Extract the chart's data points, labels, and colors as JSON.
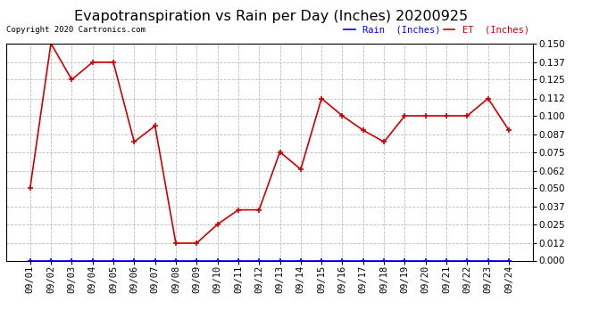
{
  "title": "Evapotranspiration vs Rain per Day (Inches) 20200925",
  "copyright_text": "Copyright 2020 Cartronics.com",
  "legend_rain": "Rain  (Inches)",
  "legend_et": "ET  (Inches)",
  "x_labels": [
    "09/01",
    "09/02",
    "09/03",
    "09/04",
    "09/05",
    "09/06",
    "09/07",
    "09/08",
    "09/09",
    "09/10",
    "09/11",
    "09/12",
    "09/13",
    "09/14",
    "09/15",
    "09/16",
    "09/17",
    "09/18",
    "09/19",
    "09/20",
    "09/21",
    "09/22",
    "09/23",
    "09/24"
  ],
  "rain_values": [
    0.0,
    0.0,
    0.0,
    0.0,
    0.0,
    0.0,
    0.0,
    0.0,
    0.0,
    0.0,
    0.0,
    0.0,
    0.0,
    0.0,
    0.0,
    0.0,
    0.0,
    0.0,
    0.0,
    0.0,
    0.0,
    0.0,
    0.0,
    0.0
  ],
  "et_values": [
    0.05,
    0.15,
    0.125,
    0.137,
    0.137,
    0.082,
    0.093,
    0.012,
    0.012,
    0.025,
    0.035,
    0.035,
    0.075,
    0.063,
    0.112,
    0.1,
    0.09,
    0.082,
    0.1,
    0.1,
    0.1,
    0.1,
    0.112,
    0.09
  ],
  "ylim": [
    0.0,
    0.15
  ],
  "yticks": [
    0.0,
    0.012,
    0.025,
    0.037,
    0.05,
    0.062,
    0.075,
    0.087,
    0.1,
    0.112,
    0.125,
    0.137,
    0.15
  ],
  "rain_color": "#0000ff",
  "et_color": "#cc0000",
  "grid_color": "#bbbbbb",
  "background_color": "#ffffff",
  "title_fontsize": 11.5,
  "tick_fontsize": 7.5,
  "copyright_fontsize": 6.5
}
